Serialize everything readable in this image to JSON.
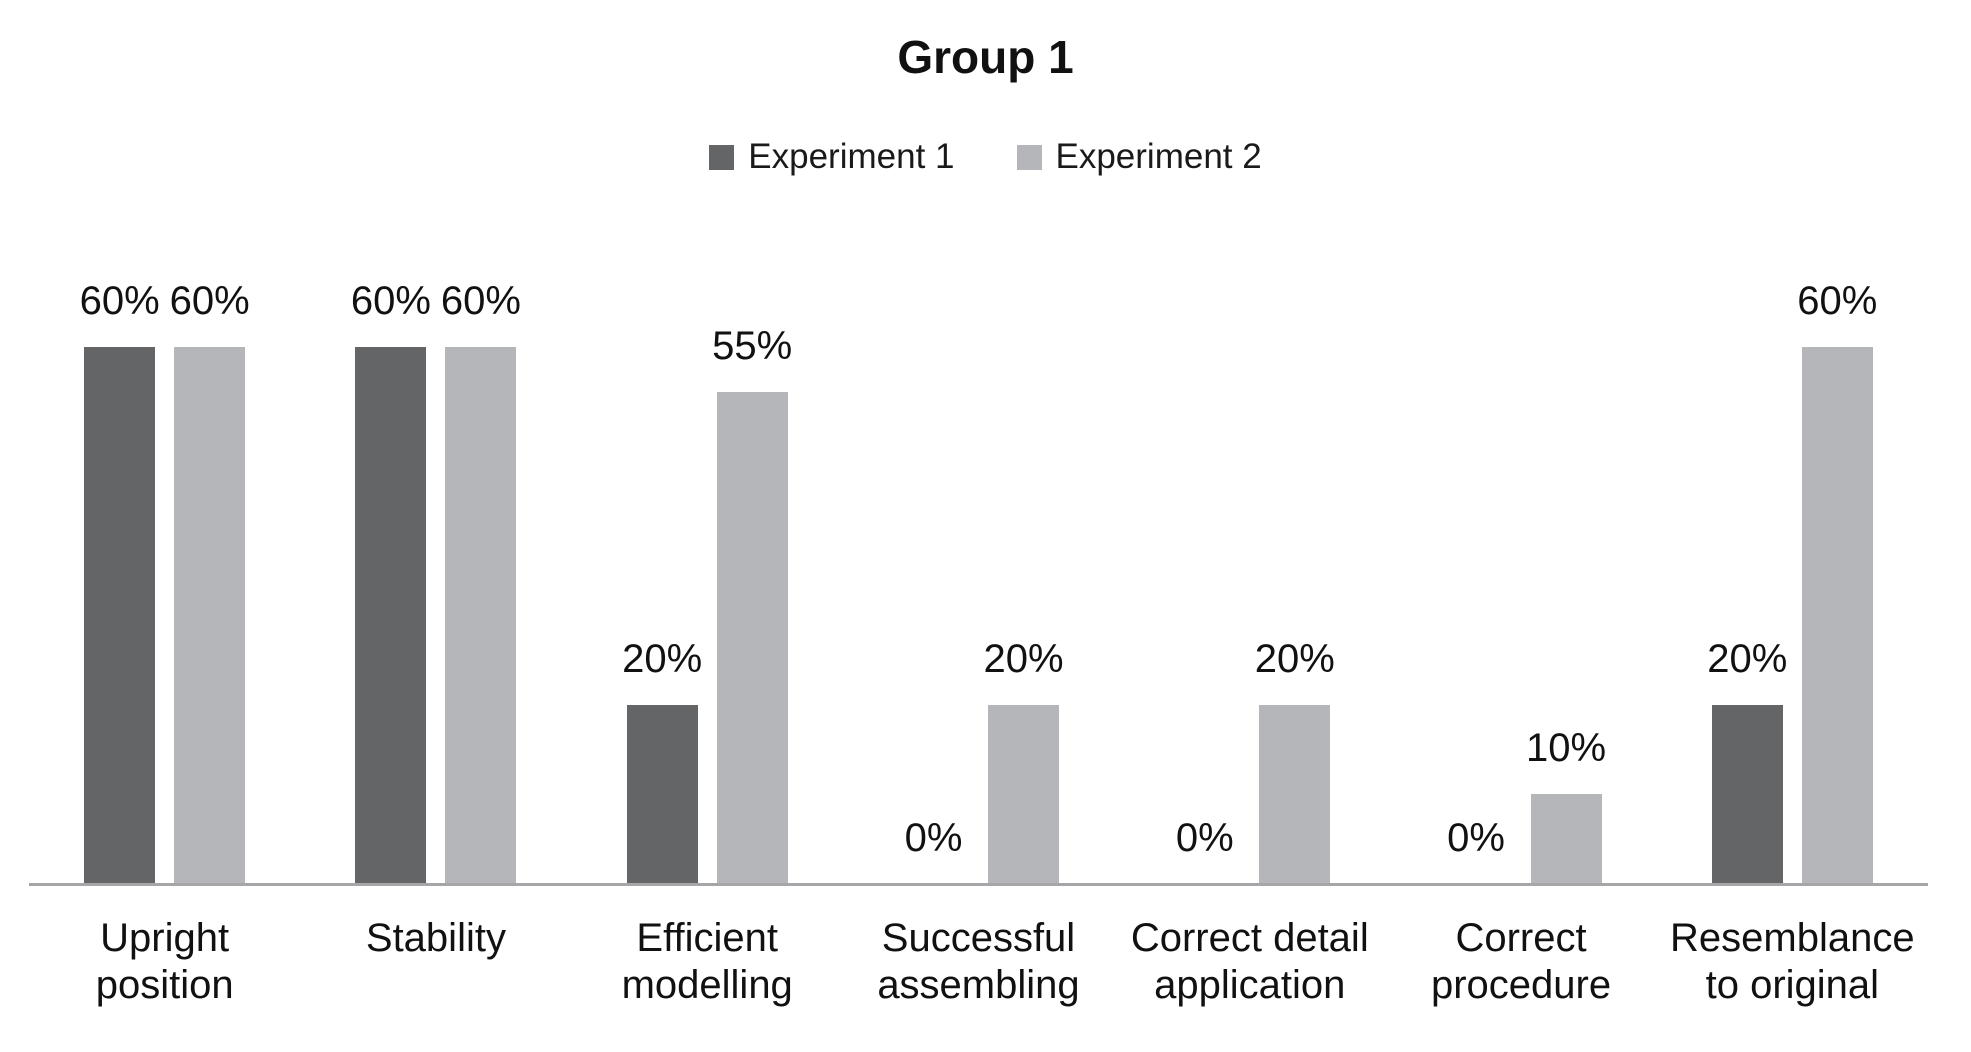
{
  "chart_data": {
    "type": "bar",
    "title": "Group 1",
    "categories": [
      "Upright position",
      "Stability",
      "Efficient modelling",
      "Successful assembling",
      "Correct detail application",
      "Correct procedure",
      "Resemblance to original"
    ],
    "category_label_lines": [
      [
        "Upright",
        "position"
      ],
      [
        "Stability"
      ],
      [
        "Efficient",
        "modelling"
      ],
      [
        "Successful",
        "assembling"
      ],
      [
        "Correct detail",
        "application"
      ],
      [
        "Correct",
        "procedure"
      ],
      [
        "Resemblance",
        "to original"
      ]
    ],
    "series": [
      {
        "name": "Experiment 1",
        "color": "#636567",
        "values": [
          60,
          60,
          20,
          0,
          0,
          0,
          20
        ],
        "labels": [
          "60%",
          "60%",
          "20%",
          "0%",
          "0%",
          "0%",
          "20%"
        ]
      },
      {
        "name": "Experiment 2",
        "color": "#b4b6b9",
        "values": [
          60,
          60,
          55,
          20,
          20,
          10,
          60
        ],
        "labels": [
          "60%",
          "60%",
          "55%",
          "20%",
          "20%",
          "10%",
          "60%"
        ]
      }
    ],
    "value_suffix": "%",
    "ylim": [
      0,
      70
    ],
    "grid": false,
    "legend_position": "top",
    "axis_line_color": "#a6a6a9",
    "xlabel": "",
    "ylabel": ""
  }
}
